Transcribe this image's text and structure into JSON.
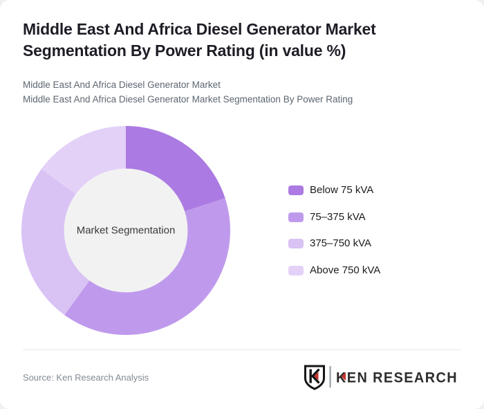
{
  "page": {
    "background": "#f0f0f1",
    "card_background": "#ffffff"
  },
  "header": {
    "title": "Middle East And Africa Diesel Generator Market Segmentation By Power Rating (in value %)",
    "subtitles": [
      "Middle East And Africa Diesel Generator Market",
      "Middle East And Africa Diesel Generator Market Segmentation By Power Rating"
    ]
  },
  "chart_data": {
    "type": "pie",
    "variant": "donut",
    "title": "Middle East And Africa Diesel Generator Market Segmentation By Power Rating (in value %)",
    "center_label": "Market Segmentation",
    "categories": [
      "Below 75 kVA",
      "75–375 kVA",
      "375–750 kVA",
      "Above 750 kVA"
    ],
    "values": [
      20,
      40,
      25,
      15
    ],
    "unit": "value %",
    "colors": [
      "#ab7ae2",
      "#bf9aec",
      "#d9c2f4",
      "#e3d1f8"
    ],
    "start_angle_deg": 0,
    "clockwise": true,
    "outer_radius_px": 151,
    "inner_radius_px": 89,
    "inner_circle_color": "#f2f2f2",
    "legend_position": "right"
  },
  "footer": {
    "source": "Source: Ken Research Analysis",
    "brand": {
      "name": "KEN RESEARCH",
      "accent_color": "#c5332d",
      "text_color": "#2d2d2d"
    }
  }
}
